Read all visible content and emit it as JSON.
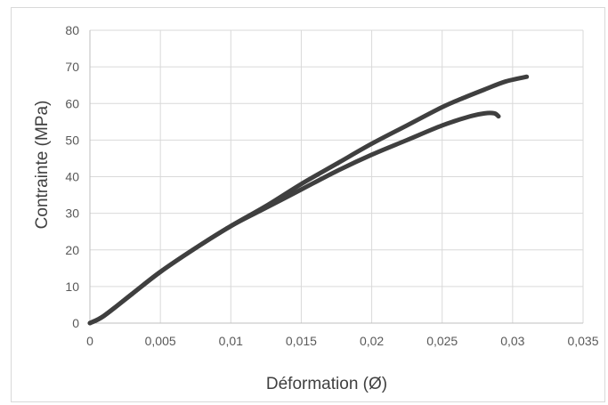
{
  "chart_data": {
    "type": "line",
    "title": "",
    "xlabel": "Déformation (Ø)",
    "ylabel": "Contrainte (MPa)",
    "xlim": [
      0,
      0.035
    ],
    "ylim": [
      0,
      80
    ],
    "x_ticks": [
      "0",
      "0,005",
      "0,01",
      "0,015",
      "0,02",
      "0,025",
      "0,03",
      "0,035"
    ],
    "y_ticks": [
      "0",
      "10",
      "20",
      "30",
      "40",
      "50",
      "60",
      "70",
      "80"
    ],
    "grid": true,
    "legend": "none",
    "line_color": "#3f3f3f",
    "series": [
      {
        "x": [
          0,
          0.001,
          0.003,
          0.005,
          0.0075,
          0.01,
          0.0125,
          0.015,
          0.0175,
          0.02,
          0.0225,
          0.025,
          0.0265,
          0.028,
          0.0295,
          0.031
        ],
        "y": [
          0,
          2,
          8,
          14,
          20.5,
          26.5,
          32,
          38,
          43.5,
          49,
          54,
          59,
          61.5,
          63.8,
          66,
          67.3
        ]
      },
      {
        "x": [
          0,
          0.001,
          0.003,
          0.005,
          0.0075,
          0.01,
          0.0125,
          0.015,
          0.0175,
          0.02,
          0.0225,
          0.025,
          0.027,
          0.028,
          0.0287,
          0.029
        ],
        "y": [
          0,
          2,
          8,
          14,
          20.5,
          26.5,
          31.5,
          36.5,
          41.5,
          46,
          50,
          54,
          56.5,
          57.3,
          57.3,
          56.5
        ]
      }
    ]
  }
}
